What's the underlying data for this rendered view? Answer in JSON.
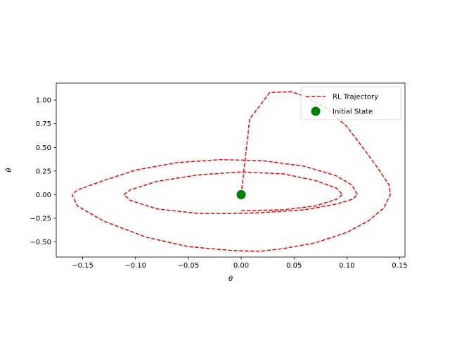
{
  "chart_data": {
    "type": "line",
    "xlabel": "θ",
    "ylabel": "θ̇",
    "xlim": [
      -0.175,
      0.155
    ],
    "ylim": [
      -0.66,
      1.18
    ],
    "xticks": [
      "−0.15",
      "−0.10",
      "−0.05",
      "0.00",
      "0.05",
      "0.10",
      "0.15"
    ],
    "xtick_values": [
      -0.15,
      -0.1,
      -0.05,
      0.0,
      0.05,
      0.1,
      0.15
    ],
    "yticks": [
      "−0.50",
      "−0.25",
      "0.00",
      "0.25",
      "0.50",
      "0.75",
      "1.00"
    ],
    "ytick_values": [
      -0.5,
      -0.25,
      0.0,
      0.25,
      0.5,
      0.75,
      1.0
    ],
    "grid": false,
    "legend_position": "top-right",
    "series": [
      {
        "name": "RL Trajectory",
        "style": "dashed",
        "color": "#ff0000",
        "x": [
          0.0,
          0.008,
          0.027,
          0.047,
          0.06,
          0.08,
          0.1,
          0.115,
          0.13,
          0.14,
          0.141,
          0.135,
          0.12,
          0.1,
          0.07,
          0.04,
          0.017,
          -0.01,
          -0.05,
          -0.09,
          -0.13,
          -0.155,
          -0.16,
          -0.155,
          -0.13,
          -0.1,
          -0.06,
          -0.02,
          0.02,
          0.06,
          0.09,
          0.105,
          0.11,
          0.105,
          0.09,
          0.06,
          0.02,
          -0.01,
          -0.04,
          -0.08,
          -0.105,
          -0.111,
          -0.105,
          -0.08,
          -0.04,
          0.0,
          0.04,
          0.07,
          0.09,
          0.096,
          0.09,
          0.07,
          0.04,
          0.0
        ],
        "y": [
          0.0,
          0.8,
          1.08,
          1.09,
          1.04,
          0.92,
          0.72,
          0.5,
          0.27,
          0.1,
          0.0,
          -0.14,
          -0.28,
          -0.4,
          -0.51,
          -0.57,
          -0.6,
          -0.59,
          -0.55,
          -0.45,
          -0.28,
          -0.12,
          0.0,
          0.05,
          0.15,
          0.26,
          0.34,
          0.37,
          0.36,
          0.3,
          0.2,
          0.1,
          0.0,
          -0.05,
          -0.1,
          -0.16,
          -0.19,
          -0.2,
          -0.2,
          -0.15,
          -0.06,
          0.0,
          0.05,
          0.14,
          0.21,
          0.24,
          0.22,
          0.15,
          0.07,
          0.0,
          -0.05,
          -0.12,
          -0.16,
          -0.17
        ]
      },
      {
        "name": "Initial State",
        "style": "marker",
        "color": "#008000",
        "x": [
          0.0
        ],
        "y": [
          0.0
        ]
      }
    ]
  }
}
